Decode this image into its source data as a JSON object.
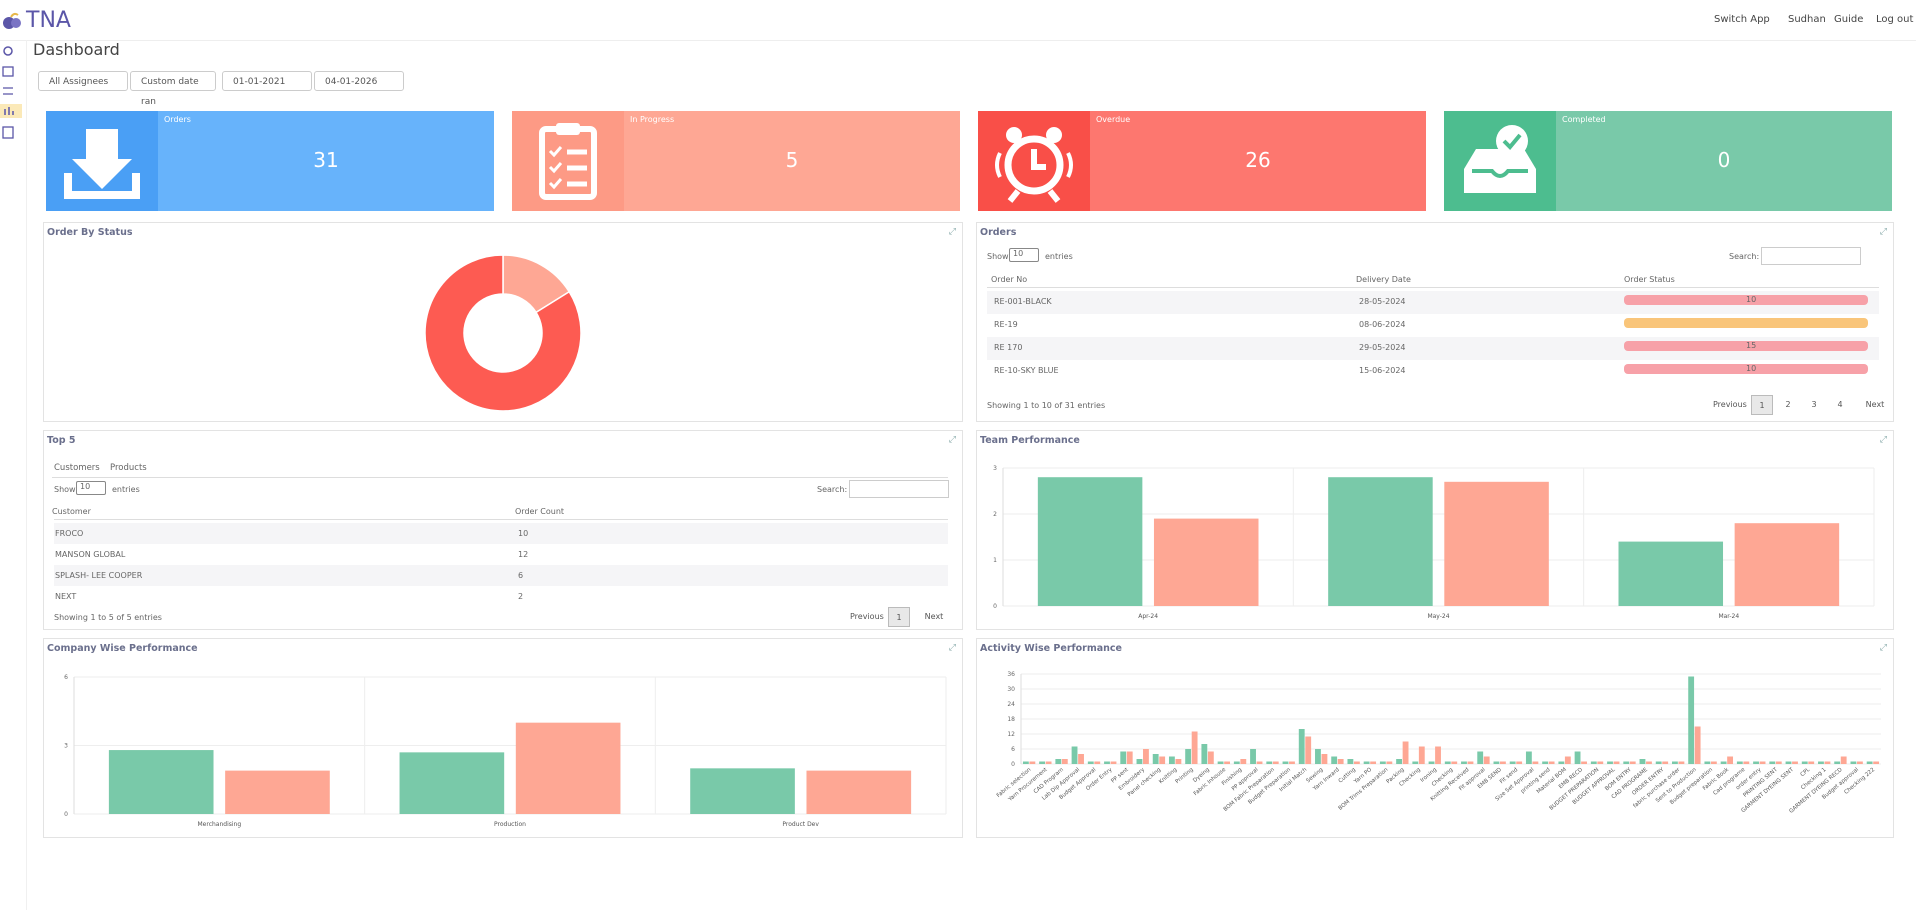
{
  "header": {
    "brand": "TNA",
    "nav": [
      "Switch App",
      "Sudhan",
      "Guide",
      "Log out"
    ]
  },
  "page_title": "Dashboard",
  "filters": [
    "All Assignees",
    "Custom date ran",
    "01-01-2021",
    "04-01-2026"
  ],
  "cards": [
    {
      "label": "Orders",
      "value": 31
    },
    {
      "label": "In Progress",
      "value": 5
    },
    {
      "label": "Overdue",
      "value": 26
    },
    {
      "label": "Completed",
      "value": 0
    }
  ],
  "orders_table": {
    "title": "Orders",
    "show": "Show",
    "page_size": "10",
    "entries": "entries",
    "search": "Search:",
    "columns": [
      "Order No",
      "Delivery Date",
      "Order Status"
    ],
    "rows": [
      [
        "RE-001-BLACK",
        "28-05-2024",
        10
      ],
      [
        "RE-19",
        "08-06-2024",
        null
      ],
      [
        "RE 170",
        "29-05-2024",
        15
      ],
      [
        "RE-10-SKY BLUE",
        "15-06-2024",
        10
      ]
    ],
    "info": "Showing 1 to 10 of 31 entries",
    "pagination": [
      "Previous",
      "1",
      "2",
      "3",
      "4",
      "Next"
    ]
  },
  "top5": {
    "title": "Top 5",
    "tabs": [
      "Customers",
      "Products"
    ],
    "show": "Show",
    "page_size": "10",
    "entries": "entries",
    "search": "Search:",
    "columns": [
      "Customer",
      "Order Count"
    ],
    "rows": [
      [
        "FROCO",
        10
      ],
      [
        "MANSON GLOBAL",
        12
      ],
      [
        "SPLASH- LEE COOPER",
        6
      ],
      [
        "NEXT",
        2
      ]
    ],
    "info": "Showing 1 to 5 of 5 entries",
    "pagination": [
      "Previous",
      "1",
      "Next"
    ]
  },
  "chart_data": [
    {
      "type": "pie",
      "title": "Order By Status",
      "values": [
        5,
        26
      ],
      "colors": [
        "#fea794",
        "#fd5b52"
      ]
    },
    {
      "type": "bar",
      "title": "Team Performance",
      "categories": [
        "Apr-24",
        "May-24",
        "Mar-24"
      ],
      "series": [
        {
          "color": "#79c9a9",
          "values": [
            2.8,
            2.8,
            1.4
          ]
        },
        {
          "color": "#fea794",
          "values": [
            1.9,
            2.7,
            1.8
          ]
        }
      ],
      "ylim": [
        0,
        3
      ],
      "yticks": [
        0,
        1,
        2,
        3
      ],
      "grid": true
    },
    {
      "type": "bar",
      "title": "Company Wise Performance",
      "categories": [
        "Merchandising",
        "Production",
        "Product Dev"
      ],
      "series": [
        {
          "color": "#79c9a9",
          "values": [
            2.8,
            2.7,
            2.0
          ]
        },
        {
          "color": "#fea794",
          "values": [
            1.9,
            4.0,
            1.9
          ]
        }
      ],
      "ylim": [
        0,
        6
      ],
      "yticks": [
        0,
        3,
        6
      ],
      "grid": true
    },
    {
      "type": "bar",
      "title": "Activity Wise Performance",
      "categories": [
        "Fabric selection",
        "Yarn Procurement",
        "CAD Program",
        "Lab Dip Approval",
        "Budget Approval",
        "Order Entry",
        "PP sent",
        "Embroidery",
        "Panel checking",
        "Knitting",
        "Printing",
        "Dyeing",
        "Fabric Inhouse",
        "Finishing",
        "PP approval",
        "BOM Fabric Preparation",
        "Budget Preparation",
        "Initial Match",
        "Sewing",
        "Yarn Inward",
        "Cutting",
        "Yarn PO",
        "BOM Trims Preparation",
        "Packing",
        "Checking",
        "Ironing",
        "Checking",
        "Knitting Received",
        "Fit approval",
        "EMB SEND",
        "Fit send",
        "Size Set Approval",
        "printing send",
        "Material BOM",
        "EMB RECD",
        "BUDGET PREPARATION",
        "BUDGET APPROVAL",
        "BOM ENTRY",
        "CAD PROGRAME",
        "ORDER ENTRY",
        "fabric purchase order",
        "Sent to Production",
        "Budget preparation",
        "Fabric Book",
        "Cad programe",
        "order entry",
        "PRINTING SENT",
        "GARMENT DYEING SENT",
        "CPL",
        "Checking 1",
        "GARMENT DYEING RECD",
        "Budget approval",
        "Checking 222"
      ],
      "series": [
        {
          "color": "#79c9a9",
          "values": [
            1,
            1,
            2,
            7,
            1,
            1,
            5,
            2,
            4,
            3,
            6,
            8,
            1,
            1,
            6,
            1,
            1,
            14,
            6,
            3,
            2,
            1,
            1,
            2,
            1,
            1,
            1,
            1,
            5,
            1,
            1,
            5,
            1,
            1,
            5,
            1,
            1,
            1,
            2,
            1,
            1,
            35,
            1,
            1,
            1,
            1,
            1,
            1,
            1,
            1,
            1,
            1,
            1
          ]
        },
        {
          "color": "#fea794",
          "values": [
            1,
            1,
            2,
            4,
            1,
            1,
            5,
            6,
            3,
            2,
            13,
            5,
            1,
            2,
            1,
            1,
            1,
            11,
            4,
            2,
            1,
            1,
            1,
            9,
            7,
            7,
            1,
            1,
            3,
            1,
            1,
            1,
            1,
            3,
            1,
            1,
            1,
            1,
            1,
            1,
            1,
            15,
            1,
            3,
            1,
            1,
            1,
            1,
            1,
            1,
            3,
            1,
            1
          ]
        }
      ],
      "ylim": [
        0,
        36
      ],
      "yticks": [
        0,
        6,
        12,
        18,
        24,
        30,
        36
      ],
      "grid": true
    }
  ]
}
